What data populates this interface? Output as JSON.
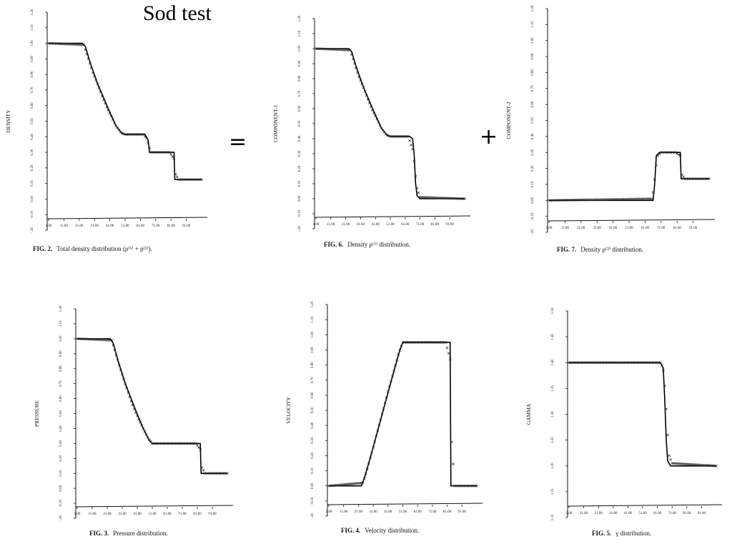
{
  "title": "Sod test",
  "operators": {
    "equals": "=",
    "plus": "+"
  },
  "chart_data": [
    {
      "id": "fig2",
      "type": "line",
      "ylabel": "DENSITY",
      "caption_fig": "FIG. 2.",
      "caption_text": "Total density distribution (ρ⁽¹⁾ + ρ⁽²⁾).",
      "ylim": [
        -0.2,
        1.2
      ],
      "yticks": [
        "1.20",
        "1.10",
        "1.00",
        "0.90",
        "0.80",
        "0.70",
        "0.60",
        "0.50",
        "0.40",
        "0.30",
        "0.20",
        "0.10",
        "0.00",
        "-0.10",
        "-.20"
      ],
      "xlim": [
        1,
        101
      ],
      "xticks": [
        "1.00",
        "11.00",
        "21.00",
        "31.00",
        "41.00",
        "51.00",
        "61.00",
        "71.00",
        "81.00",
        "91.00"
      ],
      "series": [
        {
          "style": "line",
          "x": [
            1,
            23,
            25,
            28,
            33,
            40,
            45,
            49,
            51,
            64,
            66,
            67,
            83,
            83.5,
            101
          ],
          "y": [
            1.0,
            1.0,
            0.98,
            0.88,
            0.74,
            0.58,
            0.47,
            0.42,
            0.415,
            0.415,
            0.38,
            0.3,
            0.3,
            0.125,
            0.125
          ]
        },
        {
          "style": "markers",
          "x": [
            1,
            24,
            27,
            30,
            33,
            36,
            39,
            42,
            45,
            48,
            51,
            63,
            65,
            68,
            80,
            83,
            84,
            86,
            101
          ],
          "y": [
            1.0,
            0.99,
            0.9,
            0.81,
            0.74,
            0.66,
            0.59,
            0.53,
            0.47,
            0.43,
            0.415,
            0.415,
            0.39,
            0.3,
            0.3,
            0.26,
            0.16,
            0.125,
            0.125
          ]
        }
      ]
    },
    {
      "id": "fig6",
      "type": "line",
      "ylabel": "COMPONENT-1",
      "caption_fig": "FIG. 6.",
      "caption_text": "Density ρ⁽¹⁾ distribution.",
      "ylim": [
        -0.2,
        1.2
      ],
      "yticks": [
        "1.20",
        "1.10",
        "1.00",
        "0.90",
        "0.80",
        "0.70",
        "0.60",
        "0.50",
        "0.40",
        "0.30",
        "0.20",
        "0.10",
        "0.00",
        "-0.10",
        "-.20"
      ],
      "xlim": [
        1,
        101
      ],
      "xticks": [
        "1.00",
        "11.00",
        "21.00",
        "31.00",
        "41.00",
        "51.00",
        "61.00",
        "71.00",
        "81.00",
        "91.00"
      ],
      "series": [
        {
          "style": "line",
          "x": [
            1,
            23,
            25,
            28,
            33,
            40,
            45,
            49,
            51,
            64,
            66,
            67,
            68,
            69,
            71,
            101
          ],
          "y": [
            1.0,
            1.0,
            0.98,
            0.88,
            0.74,
            0.58,
            0.47,
            0.42,
            0.415,
            0.415,
            0.4,
            0.3,
            0.1,
            0.02,
            0.0,
            0.0
          ]
        },
        {
          "style": "markers",
          "x": [
            1,
            24,
            27,
            30,
            33,
            36,
            39,
            42,
            45,
            48,
            51,
            63,
            66,
            67,
            68,
            69,
            71,
            101
          ],
          "y": [
            1.0,
            0.99,
            0.9,
            0.81,
            0.74,
            0.66,
            0.59,
            0.53,
            0.47,
            0.43,
            0.415,
            0.415,
            0.33,
            0.25,
            0.15,
            0.07,
            0.01,
            0.0
          ]
        }
      ]
    },
    {
      "id": "fig7",
      "type": "line",
      "ylabel": "COMPONENT-2",
      "caption_fig": "FIG. 7.",
      "caption_text": "Density ρ⁽²⁾ distribution.",
      "ylim": [
        -0.2,
        1.2
      ],
      "yticks": [
        "1.20",
        "1.10",
        "1.00",
        "0.90",
        "0.80",
        "0.70",
        "0.60",
        "0.50",
        "0.40",
        "0.30",
        "0.20",
        "0.10",
        "0.00",
        "-0.10",
        "-.20"
      ],
      "xlim": [
        1,
        101
      ],
      "xticks": [
        "1.00",
        "11.00",
        "21.00",
        "31.00",
        "41.00",
        "51.00",
        "61.00",
        "71.00",
        "81.00",
        "91.00"
      ],
      "series": [
        {
          "style": "line",
          "x": [
            1,
            66,
            67,
            68,
            70,
            83,
            83.5,
            101
          ],
          "y": [
            0.0,
            0.0,
            0.1,
            0.28,
            0.3,
            0.3,
            0.135,
            0.135
          ]
        },
        {
          "style": "markers",
          "x": [
            1,
            65,
            66,
            67,
            68,
            69,
            71,
            80,
            83,
            84,
            86,
            101
          ],
          "y": [
            0.0,
            0.01,
            0.05,
            0.13,
            0.22,
            0.28,
            0.3,
            0.3,
            0.28,
            0.16,
            0.135,
            0.135
          ]
        }
      ]
    },
    {
      "id": "fig3",
      "type": "line",
      "ylabel": "PRESSURE",
      "caption_fig": "FIG. 3.",
      "caption_text": "Pressure distribution.",
      "ylim": [
        -0.2,
        1.2
      ],
      "yticks": [
        "1.20",
        "1.10",
        "1.00",
        "0.90",
        "0.80",
        "0.70",
        "0.60",
        "0.50",
        "0.40",
        "0.30",
        "0.20",
        "0.10",
        "0.00",
        "-0.10",
        "-.20"
      ],
      "xlim": [
        1,
        101
      ],
      "xticks": [
        "1.00",
        "11.00",
        "21.00",
        "31.00",
        "41.00",
        "51.00",
        "61.00",
        "71.00",
        "81.00",
        "91.00"
      ],
      "series": [
        {
          "style": "line",
          "x": [
            1,
            23,
            25,
            28,
            33,
            40,
            45,
            49,
            51,
            83,
            83.5,
            101
          ],
          "y": [
            1.0,
            1.0,
            0.97,
            0.86,
            0.7,
            0.52,
            0.4,
            0.32,
            0.3,
            0.3,
            0.1,
            0.1
          ]
        },
        {
          "style": "markers",
          "x": [
            1,
            24,
            27,
            30,
            33,
            36,
            39,
            42,
            45,
            48,
            51,
            80,
            83,
            84,
            86,
            101
          ],
          "y": [
            1.0,
            0.99,
            0.89,
            0.79,
            0.7,
            0.61,
            0.53,
            0.46,
            0.4,
            0.34,
            0.3,
            0.3,
            0.26,
            0.14,
            0.1,
            0.1
          ]
        }
      ]
    },
    {
      "id": "fig4",
      "type": "line",
      "ylabel": "VELOCITY",
      "caption_fig": "FIG. 4.",
      "caption_text": "Velocity distribution.",
      "ylim": [
        -0.2,
        1.2
      ],
      "yticks": [
        "1.20",
        "1.10",
        "1.00",
        "0.90",
        "0.80",
        "0.70",
        "0.60",
        "0.50",
        "0.40",
        "0.30",
        "0.20",
        "0.10",
        "0.00",
        "-0.10",
        "-.20"
      ],
      "xlim": [
        1,
        101
      ],
      "xticks": [
        "1.00",
        "11.00",
        "21.00",
        "31.00",
        "41.00",
        "51.00",
        "61.00",
        "71.00",
        "81.00",
        "91.00"
      ],
      "series": [
        {
          "style": "line",
          "x": [
            1,
            23,
            25,
            30,
            35,
            40,
            45,
            49,
            51,
            83,
            83.5,
            101
          ],
          "y": [
            0.0,
            0.0,
            0.05,
            0.22,
            0.4,
            0.58,
            0.76,
            0.9,
            0.95,
            0.95,
            0.0,
            0.0
          ]
        },
        {
          "style": "markers",
          "x": [
            1,
            24,
            27,
            30,
            33,
            36,
            39,
            42,
            45,
            48,
            51,
            80,
            83,
            84,
            86,
            101
          ],
          "y": [
            0.0,
            0.02,
            0.11,
            0.22,
            0.33,
            0.44,
            0.55,
            0.66,
            0.76,
            0.87,
            0.95,
            0.95,
            0.84,
            0.29,
            0.0,
            0.0
          ]
        }
      ]
    },
    {
      "id": "fig5",
      "type": "line",
      "ylabel": "GAMMA",
      "caption_fig": "FIG. 5.",
      "caption_text": "γ distribution.",
      "ylim": [
        1.1,
        1.5
      ],
      "yticks": [
        "1.50",
        "1.45",
        "1.40",
        "1.35",
        "1.30",
        "1.25",
        "1.20",
        "1.15",
        "1.10"
      ],
      "xlim": [
        1,
        101
      ],
      "xticks": [
        "1.00",
        "11.00",
        "21.00",
        "31.00",
        "41.00",
        "51.00",
        "61.00",
        "71.00",
        "81.00",
        "91.00"
      ],
      "series": [
        {
          "style": "line",
          "x": [
            1,
            63,
            65,
            66,
            67,
            68,
            70,
            101
          ],
          "y": [
            1.4,
            1.4,
            1.39,
            1.33,
            1.25,
            1.21,
            1.2,
            1.2
          ]
        },
        {
          "style": "markers",
          "x": [
            1,
            63,
            64,
            65,
            66,
            67,
            68,
            69,
            71,
            101
          ],
          "y": [
            1.4,
            1.4,
            1.395,
            1.385,
            1.355,
            1.31,
            1.26,
            1.22,
            1.205,
            1.2
          ]
        }
      ]
    }
  ]
}
